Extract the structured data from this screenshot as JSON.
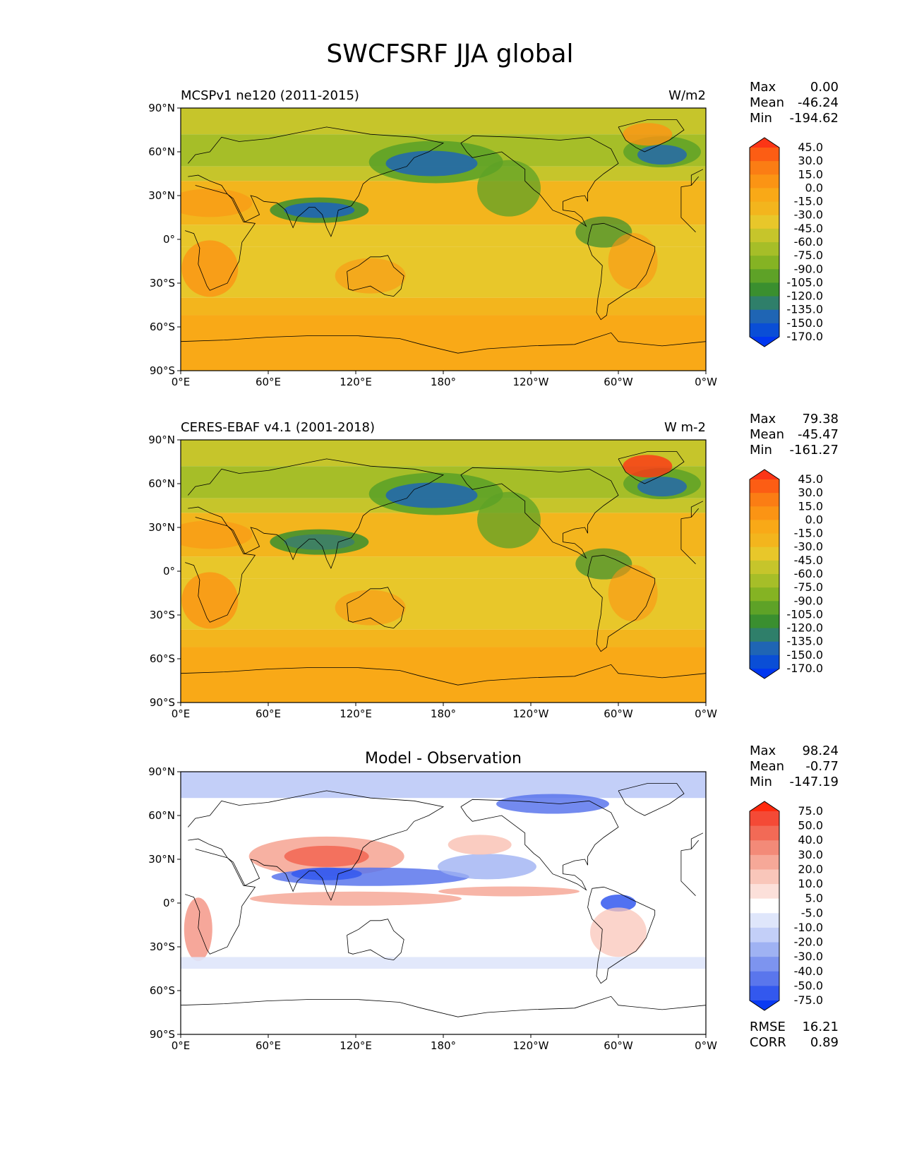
{
  "title": "SWCFSRF JJA global",
  "axes": {
    "lat_labels": [
      "90°N",
      "60°N",
      "30°N",
      "0°",
      "30°S",
      "60°S",
      "90°S"
    ],
    "lon_labels": [
      "0°E",
      "60°E",
      "120°E",
      "180°",
      "120°W",
      "60°W",
      "0°W"
    ]
  },
  "panels": [
    {
      "left_title": "MCSPv1 ne120 (2011-2015)",
      "center_title": "",
      "units": "W/m2",
      "stats": [
        [
          "Max",
          "0.00"
        ],
        [
          "Mean",
          "-46.24"
        ],
        [
          "Min",
          "-194.62"
        ]
      ],
      "colorbar": {
        "levels": [
          "45.0",
          "30.0",
          "15.0",
          "0.0",
          "-15.0",
          "-30.0",
          "-45.0",
          "-60.0",
          "-75.0",
          "-90.0",
          "-105.0",
          "-120.0",
          "-135.0",
          "-150.0",
          "-170.0"
        ],
        "colors": [
          "#fc3516",
          "#fc5d14",
          "#fb7d14",
          "#fb9414",
          "#f9a917",
          "#f3b51d",
          "#e8c72a",
          "#c6c52b",
          "#a6be28",
          "#85b323",
          "#5ea227",
          "#3a8f2f",
          "#2f7f6a",
          "#1f65b4",
          "#0a4ed6",
          "#0037f0"
        ]
      },
      "footer_stats": []
    },
    {
      "left_title": "CERES-EBAF v4.1 (2001-2018)",
      "center_title": "",
      "units": "W m-2",
      "stats": [
        [
          "Max",
          "79.38"
        ],
        [
          "Mean",
          "-45.47"
        ],
        [
          "Min",
          "-161.27"
        ]
      ],
      "colorbar": {
        "levels": [
          "45.0",
          "30.0",
          "15.0",
          "0.0",
          "-15.0",
          "-30.0",
          "-45.0",
          "-60.0",
          "-75.0",
          "-90.0",
          "-105.0",
          "-120.0",
          "-135.0",
          "-150.0",
          "-170.0"
        ],
        "colors": [
          "#fc3516",
          "#fc5d14",
          "#fb7d14",
          "#fb9414",
          "#f9a917",
          "#f3b51d",
          "#e8c72a",
          "#c6c52b",
          "#a6be28",
          "#85b323",
          "#5ea227",
          "#3a8f2f",
          "#2f7f6a",
          "#1f65b4",
          "#0a4ed6",
          "#0037f0"
        ]
      },
      "footer_stats": []
    },
    {
      "left_title": "",
      "center_title": "Model - Observation",
      "units": "",
      "stats": [
        [
          "Max",
          "98.24"
        ],
        [
          "Mean",
          "-0.77"
        ],
        [
          "Min",
          "-147.19"
        ]
      ],
      "colorbar": {
        "levels": [
          "75.0",
          "50.0",
          "40.0",
          "30.0",
          "20.0",
          "10.0",
          "5.0",
          "-5.0",
          "-10.0",
          "-20.0",
          "-30.0",
          "-40.0",
          "-50.0",
          "-75.0"
        ],
        "colors": [
          "#ff2a0e",
          "#f44a36",
          "#f26a56",
          "#f38a78",
          "#f6a898",
          "#f9c6ba",
          "#fce0da",
          "#ffffff",
          "#dfe6fb",
          "#c3cff8",
          "#9fb2f3",
          "#7d94ef",
          "#5a76ec",
          "#3358ee",
          "#0a3bf2"
        ]
      },
      "footer_stats": [
        [
          "RMSE",
          "16.21"
        ],
        [
          "CORR",
          "0.89"
        ]
      ]
    }
  ]
}
